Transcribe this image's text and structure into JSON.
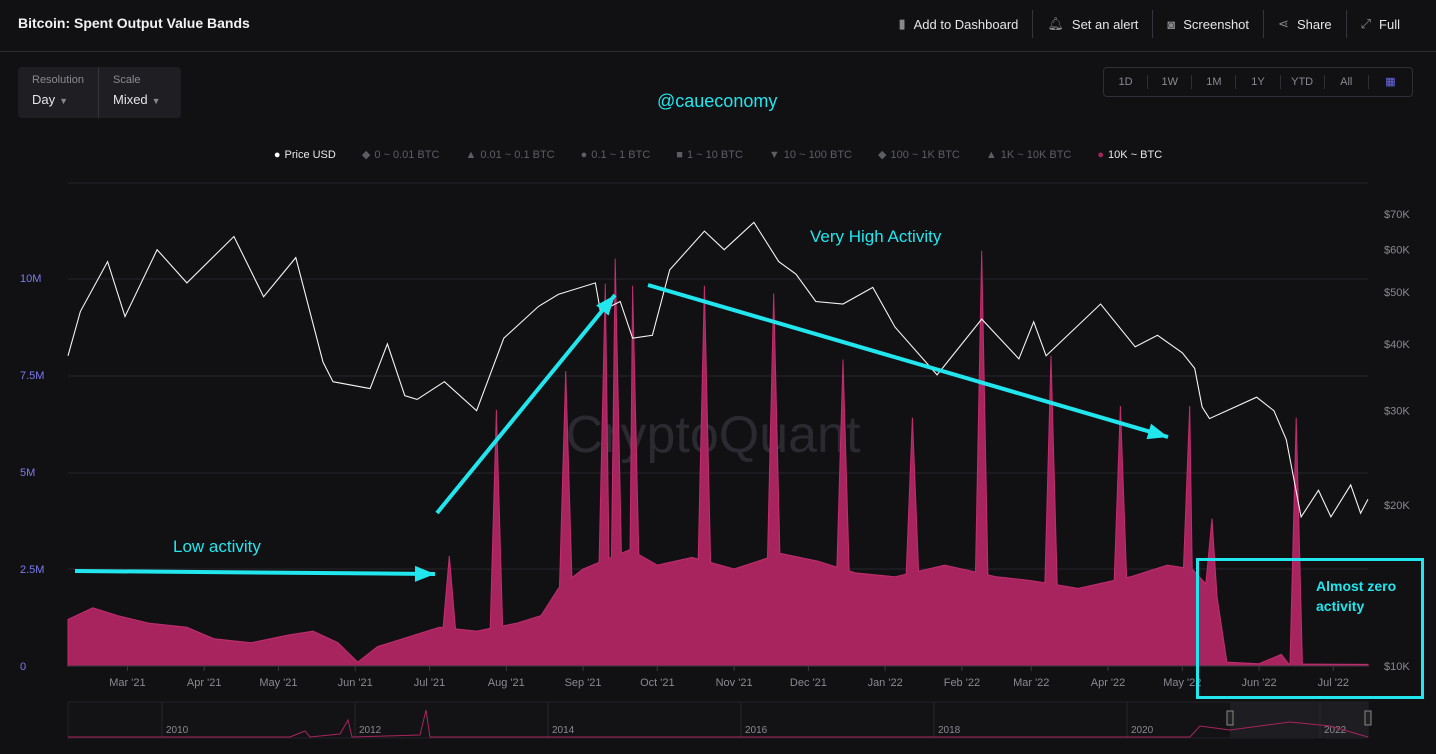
{
  "header": {
    "title": "Bitcoin: Spent Output Value Bands",
    "actions": [
      {
        "label": "Add to Dashboard",
        "icon": "bookmark-icon"
      },
      {
        "label": "Set an alert",
        "icon": "bell-icon"
      },
      {
        "label": "Screenshot",
        "icon": "camera-icon"
      },
      {
        "label": "Share",
        "icon": "share-icon"
      },
      {
        "label": "Full",
        "icon": "expand-icon"
      }
    ]
  },
  "controls": {
    "resolution_label": "Resolution",
    "resolution_value": "Day",
    "scale_label": "Scale",
    "scale_value": "Mixed"
  },
  "range_buttons": [
    "1D",
    "1W",
    "1M",
    "1Y",
    "YTD",
    "All"
  ],
  "annotations": {
    "handle": "@caueconomy",
    "high": "Very High Activity",
    "low": "Low activity",
    "zero": "Almost zero activity",
    "color": "#22e6ee"
  },
  "watermark": "CryptoQuant",
  "chart_data": {
    "type": "area",
    "legend": [
      {
        "label": "Price USD",
        "marker": "circle",
        "active": true,
        "color": "#ffffff"
      },
      {
        "label": "0 ~ 0.01 BTC",
        "marker": "diamond",
        "active": false
      },
      {
        "label": "0.01 ~ 0.1 BTC",
        "marker": "triangle-up",
        "active": false
      },
      {
        "label": "0.1 ~ 1 BTC",
        "marker": "circle",
        "active": false
      },
      {
        "label": "1 ~ 10 BTC",
        "marker": "square",
        "active": false
      },
      {
        "label": "10 ~ 100 BTC",
        "marker": "triangle-down",
        "active": false
      },
      {
        "label": "100 ~ 1K BTC",
        "marker": "diamond",
        "active": false
      },
      {
        "label": "1K ~ 10K BTC",
        "marker": "triangle-up",
        "active": false
      },
      {
        "label": "10K ~ BTC",
        "marker": "circle",
        "active": true,
        "color": "#a8245e"
      }
    ],
    "legend_placement": "top-center",
    "x_range": [
      "2021-02-05",
      "2022-07-15"
    ],
    "x_ticks": [
      {
        "date": "2021-03-01",
        "label": "Mar '21"
      },
      {
        "date": "2021-04-01",
        "label": "Apr '21"
      },
      {
        "date": "2021-05-01",
        "label": "May '21"
      },
      {
        "date": "2021-06-01",
        "label": "Jun '21"
      },
      {
        "date": "2021-07-01",
        "label": "Jul '21"
      },
      {
        "date": "2021-08-01",
        "label": "Aug '21"
      },
      {
        "date": "2021-09-01",
        "label": "Sep '21"
      },
      {
        "date": "2021-10-01",
        "label": "Oct '21"
      },
      {
        "date": "2021-11-01",
        "label": "Nov '21"
      },
      {
        "date": "2021-12-01",
        "label": "Dec '21"
      },
      {
        "date": "2022-01-01",
        "label": "Jan '22"
      },
      {
        "date": "2022-02-01",
        "label": "Feb '22"
      },
      {
        "date": "2022-03-01",
        "label": "Mar '22"
      },
      {
        "date": "2022-04-01",
        "label": "Apr '22"
      },
      {
        "date": "2022-05-01",
        "label": "May '22"
      },
      {
        "date": "2022-06-01",
        "label": "Jun '22"
      },
      {
        "date": "2022-07-01",
        "label": "Jul '22"
      }
    ],
    "left_axis": {
      "range": [
        0,
        12000000
      ],
      "ticks": [
        {
          "v": 0,
          "label": "0"
        },
        {
          "v": 2500000,
          "label": "2.5M"
        },
        {
          "v": 5000000,
          "label": "5M"
        },
        {
          "v": 7500000,
          "label": "7.5M"
        },
        {
          "v": 10000000,
          "label": "10M"
        }
      ],
      "color": "#7b7bf0"
    },
    "right_axis": {
      "scale": "log",
      "range": [
        10000,
        76000
      ],
      "ticks": [
        {
          "v": 10000,
          "label": "$10K"
        },
        {
          "v": 20000,
          "label": "$20K"
        },
        {
          "v": 30000,
          "label": "$30K"
        },
        {
          "v": 40000,
          "label": "$40K"
        },
        {
          "v": 50000,
          "label": "$50K"
        },
        {
          "v": 60000,
          "label": "$60K"
        },
        {
          "v": 70000,
          "label": "$70K"
        }
      ]
    },
    "grid": true,
    "price_usd": [
      [
        "2021-02-05",
        38000
      ],
      [
        "2021-02-10",
        46000
      ],
      [
        "2021-02-21",
        57000
      ],
      [
        "2021-02-28",
        45000
      ],
      [
        "2021-03-13",
        60000
      ],
      [
        "2021-03-25",
        52000
      ],
      [
        "2021-04-13",
        63500
      ],
      [
        "2021-04-25",
        49000
      ],
      [
        "2021-05-08",
        58000
      ],
      [
        "2021-05-19",
        37000
      ],
      [
        "2021-05-23",
        34000
      ],
      [
        "2021-06-07",
        33000
      ],
      [
        "2021-06-14",
        40000
      ],
      [
        "2021-06-21",
        32000
      ],
      [
        "2021-06-26",
        31500
      ],
      [
        "2021-07-07",
        34000
      ],
      [
        "2021-07-20",
        30000
      ],
      [
        "2021-07-31",
        41000
      ],
      [
        "2021-08-14",
        47000
      ],
      [
        "2021-08-22",
        49500
      ],
      [
        "2021-09-06",
        52000
      ],
      [
        "2021-09-08",
        46000
      ],
      [
        "2021-09-16",
        48000
      ],
      [
        "2021-09-21",
        41000
      ],
      [
        "2021-09-29",
        41500
      ],
      [
        "2021-10-06",
        55000
      ],
      [
        "2021-10-20",
        65000
      ],
      [
        "2021-10-28",
        60000
      ],
      [
        "2021-11-09",
        67500
      ],
      [
        "2021-11-19",
        57000
      ],
      [
        "2021-11-26",
        54000
      ],
      [
        "2021-12-04",
        48000
      ],
      [
        "2021-12-15",
        47500
      ],
      [
        "2021-12-27",
        51000
      ],
      [
        "2022-01-05",
        43000
      ],
      [
        "2022-01-22",
        35000
      ],
      [
        "2022-02-09",
        44500
      ],
      [
        "2022-02-24",
        37500
      ],
      [
        "2022-03-02",
        44000
      ],
      [
        "2022-03-07",
        38000
      ],
      [
        "2022-03-29",
        47500
      ],
      [
        "2022-04-12",
        39500
      ],
      [
        "2022-04-21",
        41500
      ],
      [
        "2022-05-01",
        38500
      ],
      [
        "2022-05-06",
        36000
      ],
      [
        "2022-05-09",
        30500
      ],
      [
        "2022-05-12",
        29000
      ],
      [
        "2022-05-31",
        31800
      ],
      [
        "2022-06-07",
        30000
      ],
      [
        "2022-06-12",
        26500
      ],
      [
        "2022-06-18",
        19000
      ],
      [
        "2022-06-25",
        21300
      ],
      [
        "2022-06-30",
        19000
      ],
      [
        "2022-07-08",
        21800
      ],
      [
        "2022-07-12",
        19300
      ],
      [
        "2022-07-15",
        20500
      ]
    ],
    "band_10k_plus_base": [
      [
        "2021-02-05",
        1200000
      ],
      [
        "2021-02-15",
        1500000
      ],
      [
        "2021-02-25",
        1300000
      ],
      [
        "2021-03-10",
        1100000
      ],
      [
        "2021-03-25",
        1000000
      ],
      [
        "2021-04-05",
        700000
      ],
      [
        "2021-04-20",
        600000
      ],
      [
        "2021-05-05",
        800000
      ],
      [
        "2021-05-15",
        900000
      ],
      [
        "2021-05-25",
        600000
      ],
      [
        "2021-06-02",
        100000
      ],
      [
        "2021-06-10",
        500000
      ],
      [
        "2021-06-25",
        800000
      ],
      [
        "2021-07-05",
        1000000
      ],
      [
        "2021-07-20",
        900000
      ],
      [
        "2021-08-05",
        1100000
      ],
      [
        "2021-08-15",
        1300000
      ],
      [
        "2021-08-22",
        2000000
      ],
      [
        "2021-09-01",
        2500000
      ],
      [
        "2021-09-20",
        3000000
      ],
      [
        "2021-10-01",
        2600000
      ],
      [
        "2021-10-15",
        2800000
      ],
      [
        "2021-11-01",
        2500000
      ],
      [
        "2021-11-20",
        2900000
      ],
      [
        "2021-12-05",
        2700000
      ],
      [
        "2021-12-20",
        2400000
      ],
      [
        "2022-01-05",
        2300000
      ],
      [
        "2022-01-25",
        2600000
      ],
      [
        "2022-02-15",
        2300000
      ],
      [
        "2022-03-01",
        2200000
      ],
      [
        "2022-03-20",
        2000000
      ],
      [
        "2022-04-10",
        2300000
      ],
      [
        "2022-04-25",
        2600000
      ],
      [
        "2022-05-05",
        2500000
      ],
      [
        "2022-05-15",
        1800000
      ],
      [
        "2022-05-19",
        100000
      ],
      [
        "2022-06-01",
        60000
      ],
      [
        "2022-06-10",
        300000
      ],
      [
        "2022-06-13",
        50000
      ],
      [
        "2022-06-22",
        50000
      ],
      [
        "2022-07-15",
        40000
      ]
    ],
    "band_10k_plus_spikes": [
      [
        "2021-07-09",
        2840000
      ],
      [
        "2021-07-28",
        6600000
      ],
      [
        "2021-08-25",
        7600000
      ],
      [
        "2021-09-10",
        9850000
      ],
      [
        "2021-09-14",
        10500000
      ],
      [
        "2021-09-21",
        9800000
      ],
      [
        "2021-10-20",
        9800000
      ],
      [
        "2021-11-17",
        9600000
      ],
      [
        "2021-12-15",
        7900000
      ],
      [
        "2022-01-12",
        6400000
      ],
      [
        "2022-02-09",
        10700000
      ],
      [
        "2022-03-09",
        8000000
      ],
      [
        "2022-04-06",
        6700000
      ],
      [
        "2022-05-04",
        6700000
      ],
      [
        "2022-05-13",
        3800000
      ],
      [
        "2022-06-16",
        6400000
      ]
    ],
    "navigator": {
      "year_labels": [
        "2010",
        "2012",
        "2014",
        "2016",
        "2018",
        "2020",
        "2022"
      ]
    }
  }
}
